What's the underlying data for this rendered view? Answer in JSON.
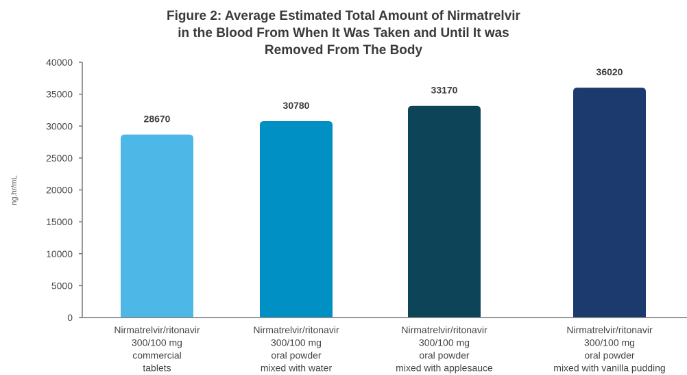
{
  "chart_data": {
    "type": "bar",
    "title_lines": [
      "Figure 2: Average  Estimated Total Amount of Nirmatrelvir",
      "in the Blood From When It Was Taken and Until It was",
      "Removed From The Body"
    ],
    "ylabel": "ng.hr/mL",
    "xlabel": "",
    "ylim": [
      0,
      40000
    ],
    "yticks": [
      0,
      5000,
      10000,
      15000,
      20000,
      25000,
      30000,
      35000,
      40000
    ],
    "grid": false,
    "categories": [
      [
        "Nirmatrelvir/ritonavir",
        "300/100 mg",
        "commercial",
        "tablets"
      ],
      [
        "Nirmatrelvir/ritonavir",
        "300/100 mg",
        "oral powder",
        "mixed with water"
      ],
      [
        "Nirmatrelvir/ritonavir",
        "300/100 mg",
        "oral powder",
        "mixed with applesauce"
      ],
      [
        "Nirmatrelvir/ritonavir",
        "300/100 mg",
        "oral powder",
        "mixed with vanilla pudding"
      ]
    ],
    "values": [
      28670,
      30780,
      33170,
      36020
    ],
    "data_labels": [
      "28670",
      "30780",
      "33170",
      "36020"
    ],
    "bar_colors": [
      "#4db8e8",
      "#0090c4",
      "#0e4458",
      "#1c3a6e"
    ]
  }
}
